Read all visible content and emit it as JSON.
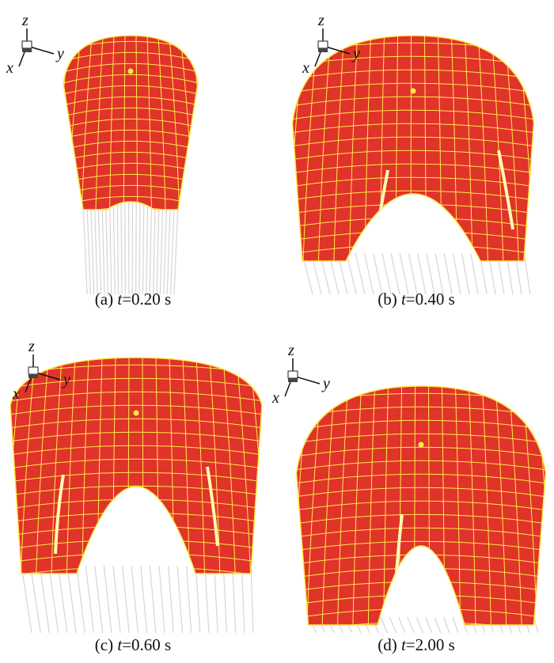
{
  "panels": [
    {
      "label": "(a)",
      "var": "t",
      "value": "=0.20 s"
    },
    {
      "label": "(b)",
      "var": "t",
      "value": "=0.40 s"
    },
    {
      "label": "(c)",
      "var": "t",
      "value": "=0.60 s"
    },
    {
      "label": "(d)",
      "var": "t",
      "value": "=2.00 s"
    }
  ],
  "axes": {
    "x": "x",
    "y": "y",
    "z": "z"
  },
  "colors": {
    "canopy": "#e0332a",
    "grid": "#ffe94a",
    "lines": "#d8d4d4"
  }
}
